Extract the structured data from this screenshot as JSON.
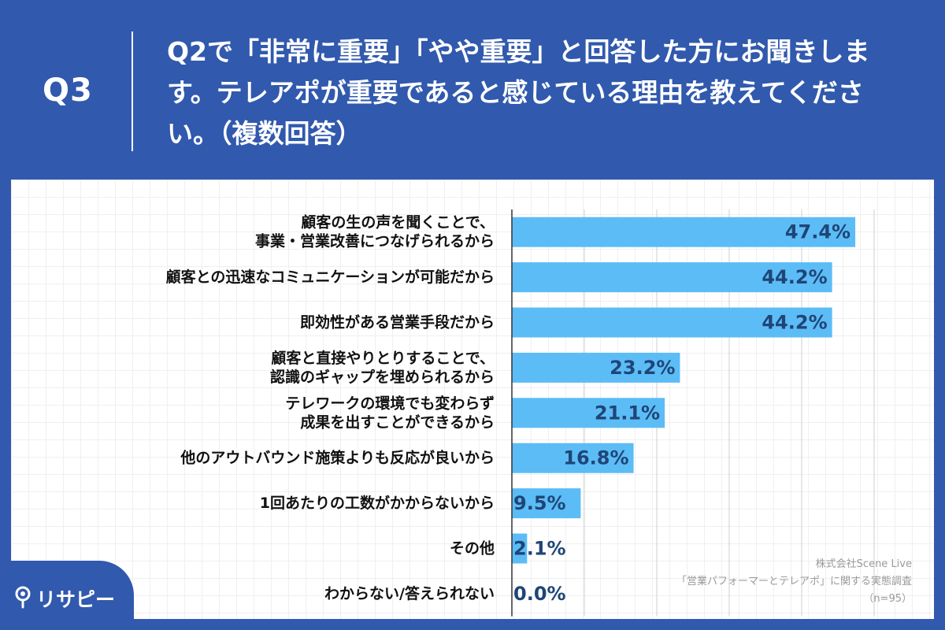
{
  "header": {
    "q_label": "Q3",
    "question": "Q2で「非常に重要」「やや重要」と回答した方にお聞きします。テレアポが重要であると感じている理由を教えてください。（複数回答）"
  },
  "chart_data": {
    "type": "bar",
    "orientation": "horizontal",
    "categories": [
      [
        "顧客の生の声を聞くことで、",
        "事業・営業改善につなげられるから"
      ],
      [
        "顧客との迅速なコミュニケーションが可能だから"
      ],
      [
        "即効性がある営業手段だから"
      ],
      [
        "顧客と直接やりとりすることで、",
        "認識のギャップを埋められるから"
      ],
      [
        "テレワークの環境でも変わらず",
        "成果を出すことができるから"
      ],
      [
        "他のアウトバウンド施策よりも反応が良いから"
      ],
      [
        "1回あたりの工数がかからないから"
      ],
      [
        "その他"
      ],
      [
        "わからない/答えられない"
      ]
    ],
    "values": [
      47.4,
      44.2,
      44.2,
      23.2,
      21.1,
      16.8,
      9.5,
      2.1,
      0.0
    ],
    "value_labels": [
      "47.4%",
      "44.2%",
      "44.2%",
      "23.2%",
      "21.1%",
      "16.8%",
      "9.5%",
      "2.1%",
      "0.0%"
    ],
    "xlim": [
      0,
      50
    ],
    "bar_color": "#5cbcf6",
    "label_color": "#1f4577",
    "grid": true
  },
  "credit": {
    "company": "株式会社Scene Live",
    "survey": "「営業パフォーマーとテレアポ」に関する実態調査",
    "sample": "（n=95）"
  },
  "logo": {
    "text": "リサピー"
  },
  "colors": {
    "background": "#3159ad",
    "panel": "#ffffff",
    "bar": "#5cbcf6",
    "value_text": "#1f4577"
  }
}
